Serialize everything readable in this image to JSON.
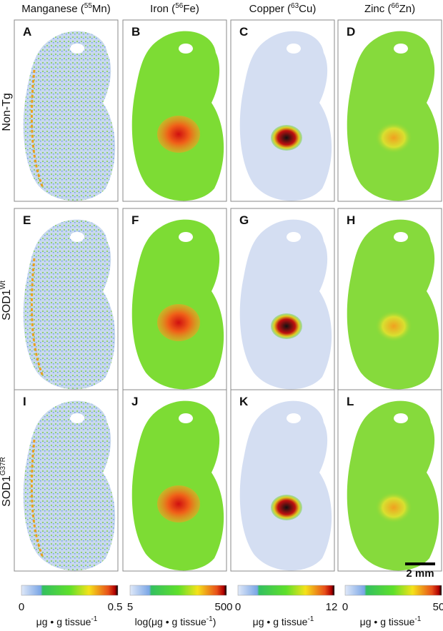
{
  "columns": [
    {
      "header": {
        "name": "Manganese (",
        "mass": "55",
        "symbol": "Mn)"
      },
      "colorbar": {
        "min": 0,
        "max": 0.5,
        "unit": {
          "text": "μg • g tissue",
          "exp": "-1"
        }
      }
    },
    {
      "header": {
        "name": "Iron (",
        "mass": "56",
        "symbol": "Fe)"
      },
      "colorbar": {
        "min": 5,
        "max": 500,
        "unit": {
          "text": "log(μg • g tissue",
          "exp": "-1",
          "close": ")"
        }
      }
    },
    {
      "header": {
        "name": "Copper (",
        "mass": "63",
        "symbol": "Cu)"
      },
      "colorbar": {
        "min": 0,
        "max": 12,
        "unit": {
          "text": "μg • g tissue",
          "exp": "-1"
        }
      }
    },
    {
      "header": {
        "name": "Zinc (",
        "mass": "66",
        "symbol": "Zn)"
      },
      "colorbar": {
        "min": 0,
        "max": 50,
        "unit": {
          "text": "μg • g tissue",
          "exp": "-1"
        }
      }
    }
  ],
  "rows": [
    {
      "label": {
        "text": "Non-Tg"
      }
    },
    {
      "label": {
        "text": "SOD1",
        "sup": "Wt"
      }
    },
    {
      "label": {
        "text": "SOD1",
        "sup": "G37R"
      }
    }
  ],
  "panels": [
    "A",
    "B",
    "C",
    "D",
    "E",
    "F",
    "G",
    "H",
    "I",
    "J",
    "K",
    "L"
  ],
  "scale_bar": "2 mm"
}
